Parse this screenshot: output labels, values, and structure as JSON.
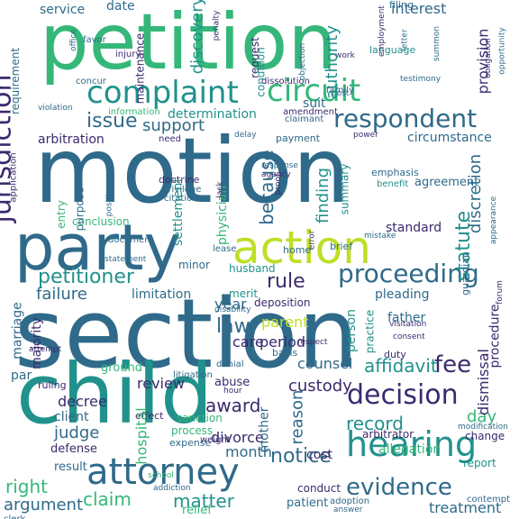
{
  "palette": {
    "navy": "#3b2a6e",
    "blue": "#2f6a8a",
    "teal": "#21918c",
    "green": "#35b779",
    "lime": "#bddf26",
    "purple": "#482878"
  },
  "words": [
    {
      "text": "petition",
      "color": "#35b779"
    },
    {
      "text": "motion",
      "color": "#2f6a8a"
    },
    {
      "text": "section",
      "color": "#2f6a8a"
    },
    {
      "text": "child",
      "color": "#21918c"
    },
    {
      "text": "party",
      "color": "#2f6a8a"
    },
    {
      "text": "action",
      "color": "#bddf26"
    },
    {
      "text": "attorney",
      "color": "#2f6a8a"
    },
    {
      "text": "hearing",
      "color": "#21918c"
    },
    {
      "text": "complaint",
      "color": "#21918c"
    },
    {
      "text": "circuit",
      "color": "#35b779"
    },
    {
      "text": "respondent",
      "color": "#2f6a8a"
    },
    {
      "text": "jurisdiction",
      "color": "#3b2a6e"
    },
    {
      "text": "proceeding",
      "color": "#2f6a8a"
    },
    {
      "text": "decision",
      "color": "#3b2a6e"
    },
    {
      "text": "petitioner",
      "color": "#21918c"
    },
    {
      "text": "issue",
      "color": "#2f6a8a"
    },
    {
      "text": "fee",
      "color": "#3b2a6e"
    },
    {
      "text": "record",
      "color": "#21918c"
    },
    {
      "text": "notice",
      "color": "#2f6a8a"
    },
    {
      "text": "evidence",
      "color": "#2f6a8a"
    },
    {
      "text": "because",
      "color": "#2f6a8a"
    },
    {
      "text": "statute",
      "color": "#21918c"
    },
    {
      "text": "support",
      "color": "#2f6a8a"
    },
    {
      "text": "rule",
      "color": "#3b2a6e"
    },
    {
      "text": "law",
      "color": "#2f6a8a"
    },
    {
      "text": "finding",
      "color": "#21918c"
    },
    {
      "text": "authority",
      "color": "#21918c"
    },
    {
      "text": "discovery",
      "color": "#21918c"
    },
    {
      "text": "interest",
      "color": "#2f6a8a"
    },
    {
      "text": "provision",
      "color": "#3b2a6e"
    },
    {
      "text": "discretion",
      "color": "#2f6a8a"
    },
    {
      "text": "claim",
      "color": "#35b779"
    },
    {
      "text": "matter",
      "color": "#21918c"
    },
    {
      "text": "right",
      "color": "#35b779"
    },
    {
      "text": "custody",
      "color": "#3b2a6e"
    },
    {
      "text": "affidavit",
      "color": "#21918c"
    },
    {
      "text": "award",
      "color": "#3b2a6e"
    },
    {
      "text": "day",
      "color": "#35b779"
    },
    {
      "text": "judge",
      "color": "#2f6a8a"
    },
    {
      "text": "period",
      "color": "#3b2a6e"
    },
    {
      "text": "year",
      "color": "#2f6a8a"
    },
    {
      "text": "parent",
      "color": "#bddf26"
    },
    {
      "text": "counsel",
      "color": "#2f6a8a"
    },
    {
      "text": "review",
      "color": "#3b2a6e"
    },
    {
      "text": "treatment",
      "color": "#2f6a8a"
    },
    {
      "text": "argument",
      "color": "#2f6a8a"
    },
    {
      "text": "determination",
      "color": "#21918c"
    },
    {
      "text": "settlement",
      "color": "#21918c"
    },
    {
      "text": "arbitration",
      "color": "#3b2a6e"
    },
    {
      "text": "failure",
      "color": "#2f6a8a"
    },
    {
      "text": "limitation",
      "color": "#2f6a8a"
    },
    {
      "text": "mother",
      "color": "#2f6a8a"
    },
    {
      "text": "reason",
      "color": "#2f6a8a"
    },
    {
      "text": "divorce",
      "color": "#3b2a6e"
    },
    {
      "text": "month",
      "color": "#2f6a8a"
    },
    {
      "text": "decree",
      "color": "#3b2a6e"
    },
    {
      "text": "client",
      "color": "#2f6a8a"
    },
    {
      "text": "sanction",
      "color": "#35b779"
    },
    {
      "text": "process",
      "color": "#35b779"
    },
    {
      "text": "hospital",
      "color": "#35b779"
    },
    {
      "text": "care",
      "color": "#3b2a6e"
    },
    {
      "text": "father",
      "color": "#2f6a8a"
    },
    {
      "text": "pleading",
      "color": "#2f6a8a"
    },
    {
      "text": "standard",
      "color": "#3b2a6e"
    },
    {
      "text": "agreement",
      "color": "#2f6a8a"
    },
    {
      "text": "circumstance",
      "color": "#2f6a8a"
    },
    {
      "text": "person",
      "color": "#21918c"
    },
    {
      "text": "dismissal",
      "color": "#3b2a6e"
    },
    {
      "text": "procedure",
      "color": "#3b2a6e"
    },
    {
      "text": "cost",
      "color": "#3b2a6e"
    },
    {
      "text": "allegation",
      "color": "#35b779"
    },
    {
      "text": "report",
      "color": "#21918c"
    },
    {
      "text": "change",
      "color": "#3b2a6e"
    },
    {
      "text": "conduct",
      "color": "#3b2a6e"
    },
    {
      "text": "patient",
      "color": "#2f6a8a"
    },
    {
      "text": "relief",
      "color": "#35b779"
    },
    {
      "text": "result",
      "color": "#2f6a8a"
    },
    {
      "text": "defense",
      "color": "#3b2a6e"
    },
    {
      "text": "expense",
      "color": "#2f6a8a"
    },
    {
      "text": "effect",
      "color": "#3b2a6e"
    },
    {
      "text": "abuse",
      "color": "#3b2a6e"
    },
    {
      "text": "arbitrator",
      "color": "#3b2a6e"
    },
    {
      "text": "ground",
      "color": "#35b779"
    },
    {
      "text": "marriage",
      "color": "#2f6a8a"
    },
    {
      "text": "majority",
      "color": "#3b2a6e"
    },
    {
      "text": "par",
      "color": "#2f6a8a"
    },
    {
      "text": "minor",
      "color": "#2f6a8a"
    },
    {
      "text": "conclusion",
      "color": "#35b779"
    },
    {
      "text": "entry",
      "color": "#35b779"
    },
    {
      "text": "purpose",
      "color": "#2f6a8a"
    },
    {
      "text": "physician",
      "color": "#35b779"
    },
    {
      "text": "deposition",
      "color": "#3b2a6e"
    },
    {
      "text": "merit",
      "color": "#21918c"
    },
    {
      "text": "husband",
      "color": "#21918c"
    },
    {
      "text": "home",
      "color": "#2f6a8a"
    },
    {
      "text": "brief",
      "color": "#2f6a8a"
    },
    {
      "text": "service",
      "color": "#2f6a8a"
    },
    {
      "text": "date",
      "color": "#2f6a8a"
    },
    {
      "text": "requirement",
      "color": "#2f6a8a"
    },
    {
      "text": "maintenance",
      "color": "#3b2a6e"
    },
    {
      "text": "request",
      "color": "#3b2a6e"
    },
    {
      "text": "condition",
      "color": "#21918c"
    },
    {
      "text": "filing",
      "color": "#2f6a8a"
    },
    {
      "text": "suit",
      "color": "#2f6a8a"
    },
    {
      "text": "payment",
      "color": "#2f6a8a"
    },
    {
      "text": "summary",
      "color": "#21918c"
    },
    {
      "text": "language",
      "color": "#21918c"
    },
    {
      "text": "basis",
      "color": "#2f6a8a"
    },
    {
      "text": "duty",
      "color": "#3b2a6e"
    },
    {
      "text": "ruling",
      "color": "#3b2a6e"
    },
    {
      "text": "application",
      "color": "#3b2a6e"
    },
    {
      "text": "injury",
      "color": "#3b2a6e"
    },
    {
      "text": "favor",
      "color": "#2f6a8a"
    },
    {
      "text": "lease",
      "color": "#2f6a8a"
    },
    {
      "text": "benefit",
      "color": "#21918c"
    },
    {
      "text": "emphasis",
      "color": "#2f6a8a"
    },
    {
      "text": "practice",
      "color": "#21918c"
    },
    {
      "text": "guardian",
      "color": "#2f6a8a"
    },
    {
      "text": "litigation",
      "color": "#21918c"
    },
    {
      "text": "school",
      "color": "#2f6a8a"
    },
    {
      "text": "addiction",
      "color": "#35b779"
    },
    {
      "text": "adoption",
      "color": "#2f6a8a"
    },
    {
      "text": "answer",
      "color": "#2f6a8a"
    },
    {
      "text": "contempt",
      "color": "#2f6a8a"
    },
    {
      "text": "clerk",
      "color": "#2f6a8a"
    },
    {
      "text": "weight",
      "color": "#2f6a8a"
    },
    {
      "text": "hour",
      "color": "#3b2a6e"
    },
    {
      "text": "denial",
      "color": "#3b2a6e"
    },
    {
      "text": "respect",
      "color": "#2f6a8a"
    },
    {
      "text": "document",
      "color": "#3b2a6e"
    },
    {
      "text": "statement",
      "color": "#2f6a8a"
    },
    {
      "text": "position",
      "color": "#2f6a8a"
    },
    {
      "text": "doctrine",
      "color": "#2f6a8a"
    },
    {
      "text": "privilege",
      "color": "#2f6a8a"
    },
    {
      "text": "citation",
      "color": "#3b2a6e"
    },
    {
      "text": "concur",
      "color": "#2f6a8a"
    },
    {
      "text": "need",
      "color": "#2f6a8a"
    },
    {
      "text": "information",
      "color": "#2f6a8a"
    },
    {
      "text": "violation",
      "color": "#3b2a6e"
    },
    {
      "text": "dissolution",
      "color": "#35b779"
    },
    {
      "text": "amendment",
      "color": "#2f6a8a"
    },
    {
      "text": "claimant",
      "color": "#3b2a6e"
    },
    {
      "text": "family",
      "color": "#3b2a6e"
    },
    {
      "text": "post",
      "color": "#2f6a8a"
    },
    {
      "text": "power",
      "color": "#2f6a8a"
    },
    {
      "text": "delay",
      "color": "#2f6a8a"
    },
    {
      "text": "response",
      "color": "#3b2a6e"
    },
    {
      "text": "agency",
      "color": "#2f6a8a"
    },
    {
      "text": "proof",
      "color": "#2f6a8a"
    },
    {
      "text": "lack",
      "color": "#3b2a6e"
    },
    {
      "text": "testimony",
      "color": "#3b2a6e"
    },
    {
      "text": "summon",
      "color": "#3b2a6e"
    },
    {
      "text": "letter",
      "color": "#2f6a8a"
    },
    {
      "text": "employment",
      "color": "#2f6a8a"
    },
    {
      "text": "objection",
      "color": "#2f6a8a"
    },
    {
      "text": "obligation",
      "color": "#3b2a6e"
    },
    {
      "text": "error",
      "color": "#2f6a8a"
    },
    {
      "text": "mistake",
      "color": "#3b2a6e"
    },
    {
      "text": "appearance",
      "color": "#3b2a6e"
    },
    {
      "text": "visitation",
      "color": "#2f6a8a"
    },
    {
      "text": "consent",
      "color": "#2f6a8a"
    },
    {
      "text": "modification",
      "color": "#2f6a8a"
    },
    {
      "text": "forum",
      "color": "#3b2a6e"
    },
    {
      "text": "work",
      "color": "#3b2a6e"
    },
    {
      "text": "office",
      "color": "#2f6a8a"
    },
    {
      "text": "opportunity",
      "color": "#3b2a6e"
    },
    {
      "text": "penalty",
      "color": "#3b2a6e"
    },
    {
      "text": "legislature",
      "color": "#2f6a8a"
    },
    {
      "text": "attempt",
      "color": "#2f6a8a"
    },
    {
      "text": "disability",
      "color": "#3b2a6e"
    },
    {
      "text": "cost",
      "color": "#2f6a8a"
    },
    {
      "text": "construction",
      "color": "#2f6a8a"
    },
    {
      "text": "ills",
      "color": "#3b2a6e"
    },
    {
      "text": "bar",
      "color": "#2f6a8a"
    }
  ]
}
